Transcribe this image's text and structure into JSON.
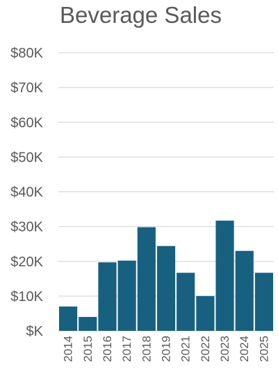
{
  "chart_data": {
    "type": "bar",
    "title": "Beverage Sales",
    "xlabel": "",
    "ylabel": "",
    "categories": [
      "2014",
      "2015",
      "2016",
      "2017",
      "2018",
      "2019",
      "2021",
      "2022",
      "2023",
      "2024",
      "2025"
    ],
    "series": [
      {
        "values": [
          7000,
          4000,
          19700,
          20200,
          29800,
          24400,
          16700,
          10000,
          31700,
          23000,
          16700
        ]
      }
    ],
    "ylim": [
      0,
      80000
    ],
    "yticks": [
      0,
      10000,
      20000,
      30000,
      40000,
      50000,
      60000,
      70000,
      80000
    ],
    "ytick_labels": [
      "$K",
      "$10K",
      "$20K",
      "$30K",
      "$40K",
      "$50K",
      "$60K",
      "$70K",
      "$80K"
    ],
    "grid": true,
    "legend": "none",
    "colors": {
      "bar": "#17607f",
      "grid": "#d9d9d9",
      "text": "#595959"
    }
  }
}
